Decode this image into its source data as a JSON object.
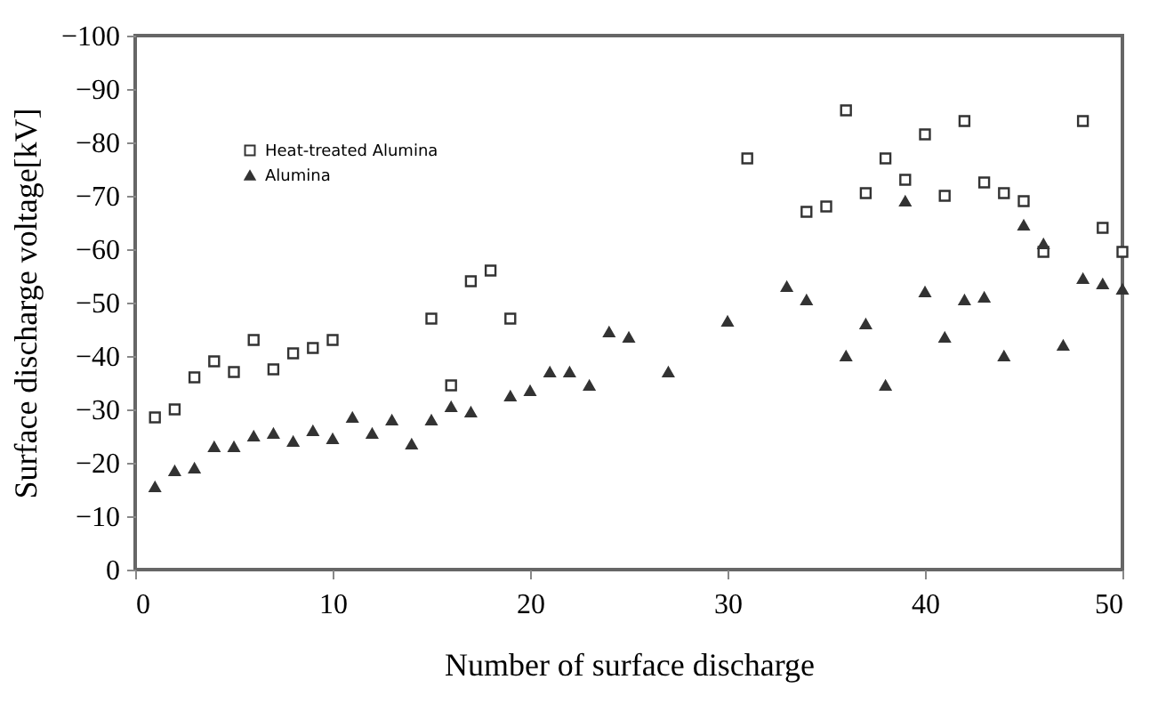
{
  "chart_data": {
    "type": "scatter",
    "xlabel": "Number of surface discharge",
    "ylabel": "Surface discharge voltage[kV]",
    "xlim": [
      0,
      50
    ],
    "xticks": [
      0,
      10,
      20,
      30,
      40,
      50
    ],
    "ylim": [
      0,
      -100
    ],
    "yticks": [
      -100,
      -90,
      -80,
      -70,
      -60,
      -50,
      -40,
      -30,
      -20,
      -10,
      0
    ],
    "grid": false,
    "legend": "top left",
    "series": [
      {
        "name": "Heat-treated Alumina",
        "color": "#333333",
        "marker": "square",
        "x": [
          1,
          2,
          3,
          4,
          5,
          6,
          7,
          8,
          9,
          10,
          15,
          16,
          17,
          18,
          19,
          31,
          34,
          35,
          36,
          37,
          38,
          39,
          40,
          41,
          42,
          43,
          44,
          45,
          46,
          48,
          49,
          50
        ],
        "values": [
          -28.5,
          -30,
          -36,
          -39,
          -37,
          -43,
          -37.5,
          -40.5,
          -41.5,
          -43,
          -47,
          -34.5,
          -54,
          -56,
          -47,
          -77,
          -67,
          -68,
          -86,
          -70.5,
          -77,
          -73,
          -81.5,
          -70,
          -84,
          -72.5,
          -70.5,
          -69,
          -59.5,
          -84,
          -64,
          -59.5
        ]
      },
      {
        "name": "Alumina",
        "color": "#333333",
        "marker": "triangle",
        "x": [
          1,
          2,
          3,
          4,
          5,
          6,
          7,
          8,
          9,
          10,
          11,
          12,
          13,
          14,
          15,
          16,
          17,
          19,
          20,
          21,
          22,
          23,
          24,
          25,
          27,
          30,
          33,
          34,
          36,
          37,
          38,
          39,
          40,
          41,
          42,
          43,
          44,
          45,
          46,
          47,
          48,
          49,
          50
        ],
        "values": [
          -15.5,
          -18.5,
          -19,
          -23,
          -23,
          -25,
          -25.5,
          -24,
          -26,
          -24.5,
          -28.5,
          -25.5,
          -28,
          -23.5,
          -28,
          -30.5,
          -29.5,
          -32.5,
          -33.5,
          -37,
          -37,
          -34.5,
          -44.5,
          -43.5,
          -37,
          -46.5,
          -53,
          -50.5,
          -40,
          -46,
          -34.5,
          -69,
          -52,
          -43.5,
          -50.5,
          -51,
          -40,
          -64.5,
          -61,
          -42,
          -54.5,
          -53.5,
          -52.5
        ]
      }
    ]
  }
}
